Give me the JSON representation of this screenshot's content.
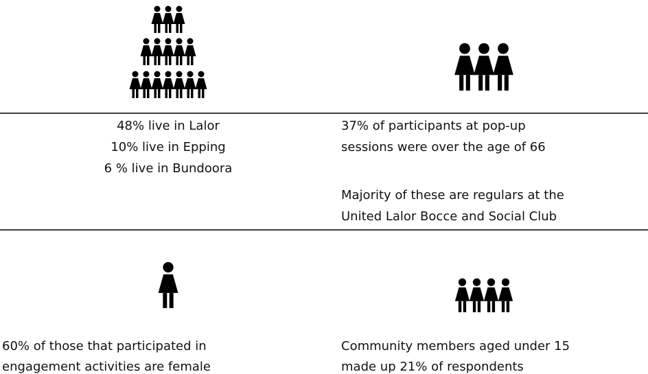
{
  "cells": [
    {
      "paragraphs": [
        [
          "48% live in Lalor",
          "10% live in Epping",
          "6 % live in Bundoora"
        ]
      ]
    },
    {
      "paragraphs": [
        [
          "37% of participants at pop-up",
          "sessions were over the age of 66"
        ],
        [
          "Majority of these are regulars at the",
          "United Lalor Bocce and Social Club"
        ]
      ]
    },
    {
      "paragraphs": [
        [
          "60% of those that participated in",
          "engagement activities are female"
        ]
      ]
    },
    {
      "paragraphs": [
        [
          "Community members aged under 15",
          "made up 21% of respondents"
        ]
      ]
    }
  ]
}
